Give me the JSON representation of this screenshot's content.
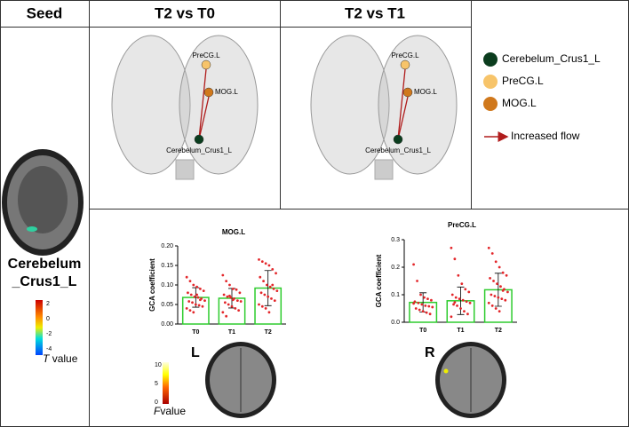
{
  "header": {
    "seed": "Seed",
    "col1": "T2 vs T0",
    "col2": "T2 vs T1"
  },
  "seed_region": {
    "lines": [
      "Cerebelum",
      "_Crus1_L"
    ]
  },
  "t_colorbar": {
    "ticks": [
      "2",
      "0",
      "-2",
      "-4"
    ],
    "symbol": "T",
    "text": "value"
  },
  "f_colorbar": {
    "ticks": [
      "10",
      "5",
      "0"
    ],
    "symbol": "F",
    "text": "value"
  },
  "panels": [
    {
      "nodes": [
        "PreCG.L",
        "MOG.L",
        "Cerebelum_Crus1_L"
      ]
    },
    {
      "nodes": [
        "PreCG.L",
        "MOG.L",
        "Cerebelum_Crus1_L"
      ]
    }
  ],
  "legend": {
    "items": [
      {
        "name": "Cerebelum_Crus1_L",
        "color": "#0b3d1e"
      },
      {
        "name": "PreCG.L",
        "color": "#f7c46a"
      },
      {
        "name": "MOG.L",
        "color": "#d0781c"
      }
    ],
    "arrow": {
      "name": "Increased flow",
      "color": "#b01c1c"
    }
  },
  "side_labels": [
    "L",
    "R"
  ],
  "chart_data": [
    {
      "type": "bar",
      "title": "MOG.L",
      "y_label": "GCA coefficient",
      "categories": [
        "T0",
        "T1",
        "T2"
      ],
      "values": [
        0.068,
        0.066,
        0.092
      ],
      "errors": [
        0.025,
        0.025,
        0.045
      ],
      "points": [
        [
          0.12,
          0.11,
          0.1,
          0.095,
          0.09,
          0.085,
          0.08,
          0.075,
          0.07,
          0.068,
          0.065,
          0.06,
          0.058,
          0.055,
          0.05,
          0.048,
          0.045,
          0.04,
          0.035,
          0.03,
          0.075,
          0.062
        ],
        [
          0.125,
          0.11,
          0.1,
          0.09,
          0.088,
          0.08,
          0.075,
          0.07,
          0.068,
          0.065,
          0.06,
          0.058,
          0.055,
          0.05,
          0.045,
          0.04,
          0.035,
          0.03,
          0.02,
          0.072,
          0.062
        ],
        [
          0.165,
          0.16,
          0.155,
          0.15,
          0.14,
          0.13,
          0.12,
          0.11,
          0.1,
          0.095,
          0.09,
          0.085,
          0.08,
          0.075,
          0.07,
          0.065,
          0.06,
          0.05,
          0.045,
          0.04,
          0.03,
          0.1
        ]
      ],
      "bar_color": "#2ecc2e",
      "point_color": "#e3262a",
      "ylim": [
        0,
        0.2
      ],
      "yticks": [
        {
          "value": 0,
          "label": "0.00"
        },
        {
          "value": 0.05,
          "label": "0.05"
        },
        {
          "value": 0.1,
          "label": "0.10"
        },
        {
          "value": 0.15,
          "label": "0.15"
        },
        {
          "value": 0.2,
          "label": "0.20"
        }
      ]
    },
    {
      "type": "bar",
      "title": "PreCG.L",
      "y_label": "GCA coefficient",
      "categories": [
        "T0",
        "T1",
        "T2"
      ],
      "values": [
        0.072,
        0.078,
        0.118
      ],
      "errors": [
        0.035,
        0.05,
        0.06
      ],
      "points": [
        [
          0.21,
          0.15,
          0.1,
          0.09,
          0.085,
          0.08,
          0.075,
          0.07,
          0.065,
          0.06,
          0.058,
          0.055,
          0.05,
          0.045,
          0.04,
          0.035,
          0.03,
          0.068
        ],
        [
          0.27,
          0.23,
          0.17,
          0.14,
          0.12,
          0.11,
          0.1,
          0.09,
          0.085,
          0.08,
          0.075,
          0.07,
          0.065,
          0.06,
          0.05,
          0.04,
          0.03,
          0.02,
          0.072
        ],
        [
          0.27,
          0.25,
          0.22,
          0.2,
          0.18,
          0.17,
          0.16,
          0.15,
          0.14,
          0.13,
          0.12,
          0.11,
          0.1,
          0.095,
          0.09,
          0.085,
          0.08,
          0.07,
          0.06,
          0.05,
          0.04,
          0.115
        ]
      ],
      "bar_color": "#2ecc2e",
      "point_color": "#e3262a",
      "ylim": [
        0,
        0.3
      ],
      "yticks": [
        {
          "value": 0,
          "label": "0.0"
        },
        0.1,
        0.2,
        0.3
      ]
    }
  ]
}
